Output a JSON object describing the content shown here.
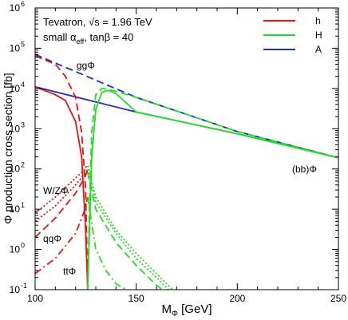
{
  "chart_data": {
    "type": "line",
    "title": "",
    "xlabel_main": "M",
    "xlabel_sub": "Φ",
    "xlabel_unit": " [GeV]",
    "ylabel": "Φ production cross section [fb]",
    "xlim": [
      100,
      250
    ],
    "ylim": [
      0.1,
      1000000
    ],
    "y_scale": "log",
    "x_ticks": [
      100,
      150,
      200,
      250
    ],
    "y_ticks": [
      {
        "base": "10",
        "exp": "-1"
      },
      {
        "base": "10",
        "exp": "0"
      },
      {
        "base": "10",
        "exp": "1"
      },
      {
        "base": "10",
        "exp": "2"
      },
      {
        "base": "10",
        "exp": "3"
      },
      {
        "base": "10",
        "exp": "4"
      },
      {
        "base": "10",
        "exp": "5"
      },
      {
        "base": "10",
        "exp": "6"
      }
    ],
    "annotations": {
      "line1": "Tevatron, √s = 1.96 TeV",
      "line2_pre": "small α",
      "line2_sub": "eff",
      "line2_post": ", tanβ = 40",
      "gg": "ggΦ",
      "bb": "(bb)Φ",
      "wz": "W/ZΦ",
      "qq": "qqΦ",
      "tt": "ttΦ"
    },
    "legend": {
      "placement": "top-right",
      "entries": [
        {
          "label": "h",
          "color": "#ee1111"
        },
        {
          "label": "H",
          "color": "#22dd22"
        },
        {
          "label": "A",
          "color": "#1a2ec8"
        }
      ]
    },
    "series": [
      {
        "higgs": "A",
        "process": "(bb)Φ",
        "style": "solid",
        "color": "#1a2ec8",
        "x": [
          100,
          150,
          200,
          250
        ],
        "y": [
          11000,
          2600,
          750,
          190
        ]
      },
      {
        "higgs": "A",
        "process": "ggΦ",
        "style": "dashed",
        "color": "#1a2ec8",
        "x": [
          100,
          150,
          200,
          250
        ],
        "y": [
          70000,
          6000,
          850,
          190
        ]
      },
      {
        "higgs": "h",
        "process": "(bb)Φ",
        "style": "solid",
        "color": "#ee1111",
        "x": [
          100,
          110,
          115,
          120,
          123,
          125,
          126
        ],
        "y": [
          11000,
          7000,
          5000,
          1500,
          200,
          3,
          0.1
        ]
      },
      {
        "higgs": "h",
        "process": "ggΦ",
        "style": "dashed",
        "color": "#ee1111",
        "x": [
          100,
          110,
          115,
          120,
          123,
          125,
          126
        ],
        "y": [
          65000,
          40000,
          20000,
          6000,
          800,
          30,
          0.1
        ]
      },
      {
        "higgs": "h",
        "process": "W/ZΦ",
        "style": "dotted",
        "color": "#ee1111",
        "x": [
          100,
          110,
          120,
          124,
          126
        ],
        "y": [
          8,
          20,
          60,
          90,
          130
        ]
      },
      {
        "higgs": "h",
        "process": "W/ZΦ",
        "style": "dotted",
        "color": "#ee1111",
        "x": [
          100,
          110,
          120,
          124,
          126
        ],
        "y": [
          5,
          12,
          40,
          70,
          100
        ]
      },
      {
        "higgs": "h",
        "process": "qqΦ",
        "style": "dashed",
        "color": "#ee1111",
        "x": [
          100,
          110,
          120,
          124,
          126
        ],
        "y": [
          2,
          6,
          25,
          55,
          90
        ]
      },
      {
        "higgs": "h",
        "process": "ttΦ",
        "style": "dashdot",
        "color": "#ee1111",
        "x": [
          100,
          110,
          120,
          124,
          126
        ],
        "y": [
          0.25,
          0.6,
          2.5,
          8,
          20
        ]
      },
      {
        "higgs": "H",
        "process": "(bb)Φ",
        "style": "solid",
        "color": "#22dd22",
        "x": [
          126,
          127,
          128,
          130,
          133,
          136,
          140,
          150,
          200,
          250
        ],
        "y": [
          0.1,
          5,
          200,
          3000,
          8000,
          9000,
          7500,
          2600,
          750,
          190
        ]
      },
      {
        "higgs": "H",
        "process": "ggΦ",
        "style": "dashed",
        "color": "#22dd22",
        "x": [
          126,
          127,
          128,
          130,
          133,
          136,
          140,
          150,
          200,
          250
        ],
        "y": [
          0.1,
          20,
          800,
          7000,
          10000,
          9500,
          8500,
          6000,
          850,
          190
        ]
      },
      {
        "higgs": "H",
        "process": "W/ZΦ",
        "style": "dotted",
        "color": "#22dd22",
        "x": [
          126,
          130,
          140,
          150,
          160,
          168
        ],
        "y": [
          120,
          20,
          3,
          0.8,
          0.25,
          0.1
        ]
      },
      {
        "higgs": "H",
        "process": "W/ZΦ",
        "style": "dotted",
        "color": "#22dd22",
        "x": [
          126,
          130,
          140,
          150,
          160,
          166
        ],
        "y": [
          100,
          15,
          2.5,
          0.6,
          0.2,
          0.1
        ]
      },
      {
        "higgs": "H",
        "process": "qqΦ",
        "style": "dashed",
        "color": "#22dd22",
        "x": [
          126,
          130,
          140,
          150,
          160,
          163
        ],
        "y": [
          80,
          10,
          1.5,
          0.4,
          0.13,
          0.1
        ]
      },
      {
        "higgs": "H",
        "process": "ttΦ",
        "style": "dashdot",
        "color": "#22dd22",
        "x": [
          126,
          130,
          135,
          140,
          145
        ],
        "y": [
          20,
          1,
          0.3,
          0.14,
          0.1
        ]
      }
    ]
  }
}
